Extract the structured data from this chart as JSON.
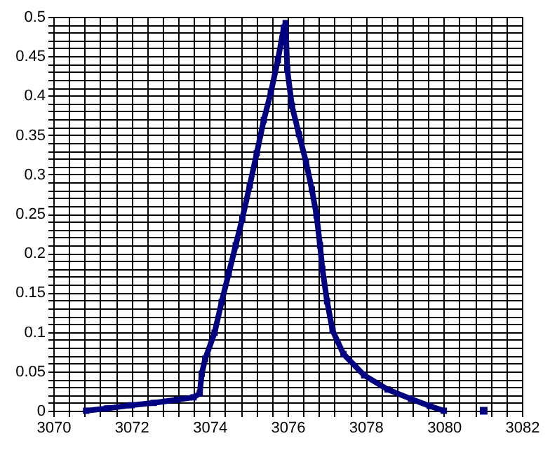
{
  "chart_data": {
    "type": "line",
    "series": [
      {
        "color": "#000080",
        "x": [
          3070.84,
          3071.38,
          3072.0,
          3072.57,
          3073.17,
          3073.59,
          3073.75,
          3073.8,
          3073.89,
          3074.13,
          3074.31,
          3074.49,
          3074.67,
          3074.84,
          3075.03,
          3075.21,
          3075.39,
          3075.57,
          3075.75,
          3075.9,
          3075.95,
          3075.99,
          3076.11,
          3076.29,
          3076.47,
          3076.62,
          3076.74,
          3076.83,
          3076.89,
          3077.01,
          3077.15,
          3077.43,
          3077.96,
          3078.56,
          3079.16,
          3079.64,
          3080.0
        ],
        "values": [
          0,
          0.003,
          0.007,
          0.01,
          0.014,
          0.017,
          0.022,
          0.047,
          0.066,
          0.099,
          0.138,
          0.174,
          0.21,
          0.244,
          0.286,
          0.327,
          0.369,
          0.404,
          0.445,
          0.486,
          0.492,
          0.434,
          0.387,
          0.351,
          0.316,
          0.281,
          0.248,
          0.21,
          0.18,
          0.139,
          0.102,
          0.072,
          0.045,
          0.027,
          0.015,
          0.006,
          0
        ]
      },
      {
        "type": "scatter",
        "color": "#000080",
        "x": [
          3081.02
        ],
        "values": [
          0
        ]
      }
    ],
    "marker": "square",
    "line_style": "solid",
    "grid": true,
    "xlim": [
      3070,
      3082
    ],
    "xticks": [
      3070,
      {
        "value": 3070.4,
        "label": null
      },
      {
        "value": 3070.8,
        "label": null
      },
      {
        "value": 3071.2,
        "label": null
      },
      {
        "value": 3071.6,
        "label": null
      },
      3072,
      {
        "value": 3072.4,
        "label": null
      },
      {
        "value": 3072.8,
        "label": null
      },
      {
        "value": 3073.2,
        "label": null
      },
      {
        "value": 3073.6,
        "label": null
      },
      3074,
      {
        "value": 3074.4,
        "label": null
      },
      {
        "value": 3074.8,
        "label": null
      },
      {
        "value": 3075.2,
        "label": null
      },
      {
        "value": 3075.6,
        "label": null
      },
      3076,
      {
        "value": 3076.4,
        "label": null
      },
      {
        "value": 3076.8,
        "label": null
      },
      {
        "value": 3077.2,
        "label": null
      },
      {
        "value": 3077.6,
        "label": null
      },
      3078,
      {
        "value": 3078.4,
        "label": null
      },
      {
        "value": 3078.8,
        "label": null
      },
      {
        "value": 3079.2,
        "label": null
      },
      {
        "value": 3079.6,
        "label": null
      },
      3080,
      {
        "value": 3080.4,
        "label": null
      },
      {
        "value": 3080.8,
        "label": null
      },
      {
        "value": 3081.2,
        "label": null
      },
      {
        "value": 3081.6,
        "label": null
      },
      3082
    ],
    "ylim": [
      0,
      0.5
    ],
    "yticks": [
      0,
      {
        "value": 0.01,
        "label": null
      },
      {
        "value": 0.02,
        "label": null
      },
      {
        "value": 0.03,
        "label": null
      },
      {
        "value": 0.04,
        "label": null
      },
      0.05,
      {
        "value": 0.06,
        "label": null
      },
      {
        "value": 0.07,
        "label": null
      },
      {
        "value": 0.08,
        "label": null
      },
      {
        "value": 0.09,
        "label": null
      },
      0.1,
      {
        "value": 0.11,
        "label": null
      },
      {
        "value": 0.12,
        "label": null
      },
      {
        "value": 0.13,
        "label": null
      },
      {
        "value": 0.14,
        "label": null
      },
      0.15,
      {
        "value": 0.16,
        "label": null
      },
      {
        "value": 0.17,
        "label": null
      },
      {
        "value": 0.18,
        "label": null
      },
      {
        "value": 0.19,
        "label": null
      },
      0.2,
      {
        "value": 0.21,
        "label": null
      },
      {
        "value": 0.22,
        "label": null
      },
      {
        "value": 0.23,
        "label": null
      },
      {
        "value": 0.24,
        "label": null
      },
      0.25,
      {
        "value": 0.26,
        "label": null
      },
      {
        "value": 0.27,
        "label": null
      },
      {
        "value": 0.28,
        "label": null
      },
      {
        "value": 0.29,
        "label": null
      },
      0.3,
      {
        "value": 0.31,
        "label": null
      },
      {
        "value": 0.32,
        "label": null
      },
      {
        "value": 0.33,
        "label": null
      },
      {
        "value": 0.34,
        "label": null
      },
      0.35,
      {
        "value": 0.36,
        "label": null
      },
      {
        "value": 0.37,
        "label": null
      },
      {
        "value": 0.38,
        "label": null
      },
      {
        "value": 0.39,
        "label": null
      },
      0.4,
      {
        "value": 0.41,
        "label": null
      },
      {
        "value": 0.42,
        "label": null
      },
      {
        "value": 0.43,
        "label": null
      },
      {
        "value": 0.44,
        "label": null
      },
      0.45,
      {
        "value": 0.46,
        "label": null
      },
      {
        "value": 0.47,
        "label": null
      },
      {
        "value": 0.48,
        "label": null
      },
      {
        "value": 0.49,
        "label": null
      },
      0.5
    ]
  }
}
